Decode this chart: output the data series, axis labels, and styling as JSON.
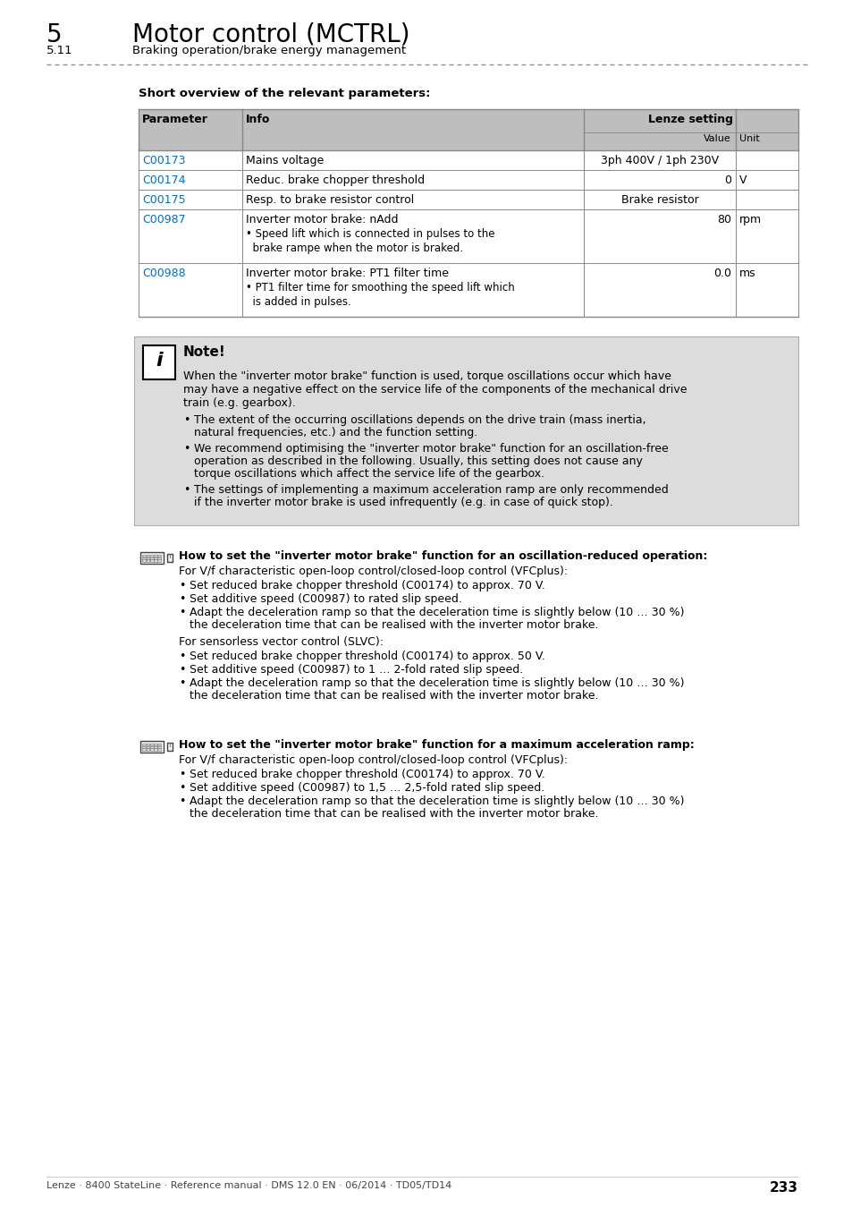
{
  "title_number": "5",
  "title_text": "Motor control (MCTRL)",
  "subtitle_number": "5.11",
  "subtitle_text": "Braking operation/brake energy management",
  "section_title": "Short overview of the relevant parameters:",
  "table_rows": [
    {
      "param": "C00173",
      "info_lines": [
        "Mains voltage"
      ],
      "value": "3ph 400V / 1ph 230V",
      "unit": "",
      "val_align": "center"
    },
    {
      "param": "C00174",
      "info_lines": [
        "Reduc. brake chopper threshold"
      ],
      "value": "0",
      "unit": "V",
      "val_align": "right"
    },
    {
      "param": "C00175",
      "info_lines": [
        "Resp. to brake resistor control"
      ],
      "value": "Brake resistor",
      "unit": "",
      "val_align": "center"
    },
    {
      "param": "C00987",
      "info_lines": [
        "Inverter motor brake: nAdd",
        "• Speed lift which is connected in pulses to the",
        "  brake rampe when the motor is braked."
      ],
      "value": "80",
      "unit": "rpm",
      "val_align": "right"
    },
    {
      "param": "C00988",
      "info_lines": [
        "Inverter motor brake: PT1 filter time",
        "• PT1 filter time for smoothing the speed lift which",
        "  is added in pulses."
      ],
      "value": "0.0",
      "unit": "ms",
      "val_align": "right"
    }
  ],
  "note_title": "Note!",
  "note_body": [
    "When the \"inverter motor brake\" function is used, torque oscillations occur which have",
    "may have a negative effect on the service life of the components of the mechanical drive",
    "train (e.g. gearbox)."
  ],
  "note_bullets": [
    [
      "The extent of the occurring oscillations depends on the drive train (mass inertia,",
      "natural frequencies, etc.) and the function setting."
    ],
    [
      "We recommend optimising the \"inverter motor brake\" function for an oscillation-free",
      "operation as described in the following. Usually, this setting does not cause any",
      "torque oscillations which affect the service life of the gearbox."
    ],
    [
      "The settings of implementing a maximum acceleration ramp are only recommended",
      "if the inverter motor brake is used infrequently (e.g. in case of quick stop)."
    ]
  ],
  "sec2_title": "How to set the \"inverter motor brake\" function for an oscillation-reduced operation:",
  "sec2_intro1": "For V/f characteristic open-loop control/closed-loop control (VFCplus):",
  "sec2_b1": [
    [
      "Set reduced brake chopper threshold (",
      "C00174",
      ") to approx. 70 V."
    ],
    [
      "Set additive speed (",
      "C00987",
      ") to rated slip speed."
    ],
    [
      "Adapt the deceleration ramp so that the deceleration time is slightly below (10 … 30 %)",
      "the deceleration time that can be realised with the inverter motor brake."
    ]
  ],
  "sec2_intro2": "For sensorless vector control (SLVC):",
  "sec2_b2": [
    [
      "Set reduced brake chopper threshold (",
      "C00174",
      ") to approx. 50 V."
    ],
    [
      "Set additive speed (",
      "C00987",
      ") to 1 … 2-fold rated slip speed."
    ],
    [
      "Adapt the deceleration ramp so that the deceleration time is slightly below (10 … 30 %)",
      "the deceleration time that can be realised with the inverter motor brake."
    ]
  ],
  "sec3_title": "How to set the \"inverter motor brake\" function for a maximum acceleration ramp:",
  "sec3_intro": "For V/f characteristic open-loop control/closed-loop control (VFCplus):",
  "sec3_bullets": [
    [
      "Set reduced brake chopper threshold (",
      "C00174",
      ") to approx. 70 V."
    ],
    [
      "Set additive speed (",
      "C00987",
      ") to 1,5 … 2,5-fold rated slip speed."
    ],
    [
      "Adapt the deceleration ramp so that the deceleration time is slightly below (10 … 30 %)",
      "the deceleration time that can be realised with the inverter motor brake."
    ]
  ],
  "footer_text": "Lenze · 8400 StateLine · Reference manual · DMS 12.0 EN · 06/2014 · TD05/TD14",
  "page_number": "233",
  "link_color": "#0070C0",
  "header_bg": "#BEBEBE",
  "note_bg": "#DCDCDC",
  "border_color": "#888888"
}
